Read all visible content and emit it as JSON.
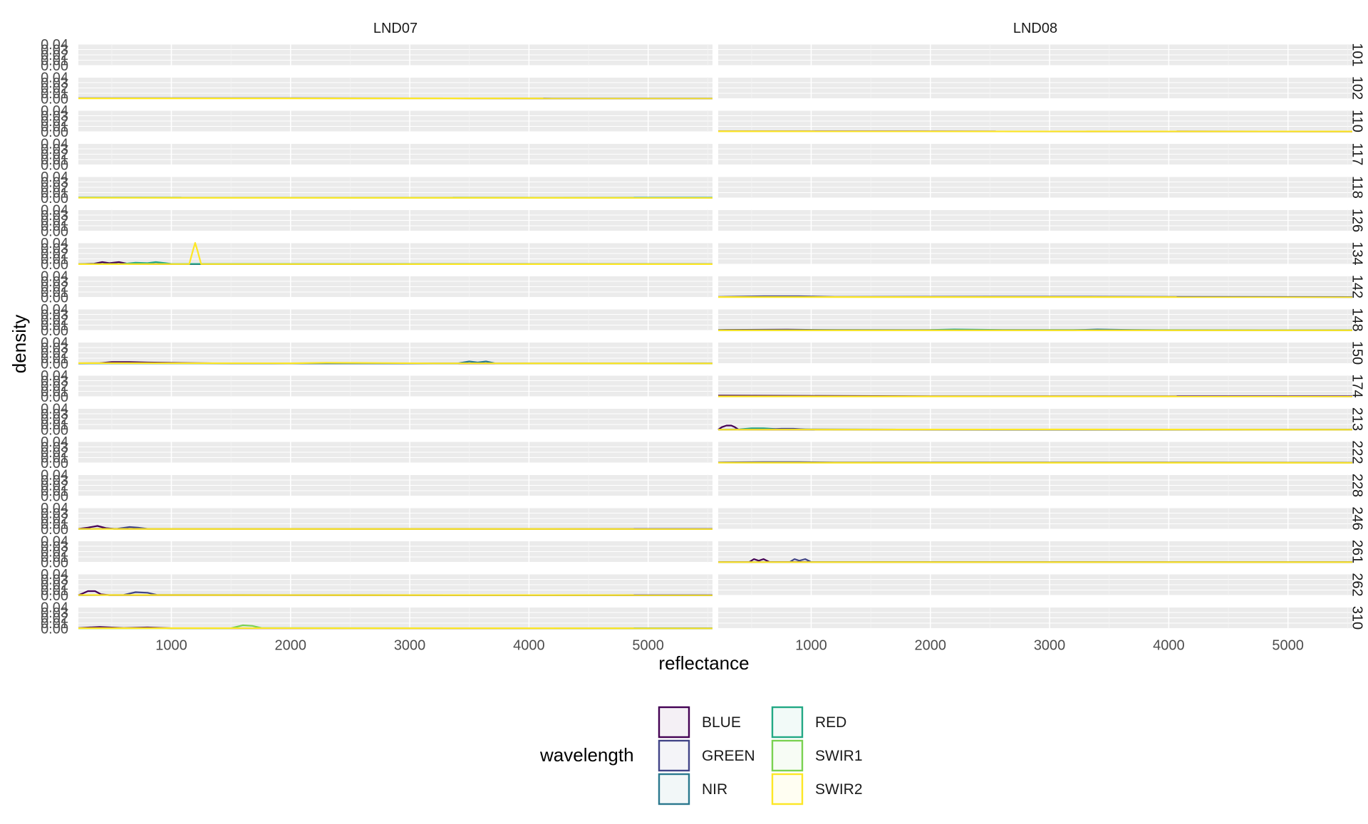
{
  "chart_data": {
    "type": "line",
    "subtype": "faceted density",
    "x_label": "reflectance",
    "y_label": "density",
    "column_facets": [
      "LND07",
      "LND08"
    ],
    "row_facets": [
      "101",
      "102",
      "110",
      "117",
      "118",
      "126",
      "134",
      "142",
      "148",
      "150",
      "174",
      "213",
      "222",
      "228",
      "246",
      "261",
      "262",
      "310"
    ],
    "x_ticks": [
      "1000",
      "2000",
      "3000",
      "4000",
      "5000"
    ],
    "x_tick_values": [
      1000,
      2000,
      3000,
      4000,
      5000
    ],
    "xlim": [
      220,
      5540
    ],
    "y_ticks": [
      "0.00",
      "0.01",
      "0.02",
      "0.03",
      "0.04"
    ],
    "y_tick_values": [
      0.0,
      0.01,
      0.02,
      0.03,
      0.04
    ],
    "ylim": [
      0,
      0.04
    ],
    "grid": true,
    "legend": {
      "title": "wavelength",
      "position": "bottom",
      "entries": [
        {
          "name": "BLUE",
          "color": "#440154"
        },
        {
          "name": "GREEN",
          "color": "#414487"
        },
        {
          "name": "NIR",
          "color": "#2a788e"
        },
        {
          "name": "RED",
          "color": "#22a884"
        },
        {
          "name": "SWIR1",
          "color": "#7ad151"
        },
        {
          "name": "SWIR2",
          "color": "#fde725"
        }
      ]
    },
    "series": [
      {
        "col": 0,
        "row": 1,
        "name": "GREEN",
        "points": [
          [
            220,
            0.001
          ],
          [
            2000,
            0.0008
          ],
          [
            3500,
            0.0006
          ],
          [
            4200,
            0.0003
          ],
          [
            5540,
            0.0002
          ]
        ]
      },
      {
        "col": 0,
        "row": 1,
        "name": "SWIR2",
        "points": [
          [
            220,
            0.0006
          ],
          [
            5540,
            0.0004
          ]
        ]
      },
      {
        "col": 0,
        "row": 4,
        "name": "RED",
        "points": [
          [
            220,
            0.0008
          ],
          [
            5540,
            0.0006
          ]
        ]
      },
      {
        "col": 0,
        "row": 4,
        "name": "SWIR2",
        "points": [
          [
            220,
            0.0004
          ],
          [
            5540,
            0.0003
          ]
        ]
      },
      {
        "col": 0,
        "row": 6,
        "name": "BLUE",
        "points": [
          [
            220,
            0.0003
          ],
          [
            350,
            0.001
          ],
          [
            420,
            0.004
          ],
          [
            480,
            0.002
          ],
          [
            560,
            0.004
          ],
          [
            640,
            0.0005
          ],
          [
            800,
            0.0002
          ],
          [
            5540,
            0.0001
          ]
        ]
      },
      {
        "col": 0,
        "row": 6,
        "name": "RED",
        "points": [
          [
            220,
            0.0002
          ],
          [
            600,
            0.0005
          ],
          [
            700,
            0.003
          ],
          [
            800,
            0.002
          ],
          [
            870,
            0.004
          ],
          [
            950,
            0.002
          ],
          [
            1000,
            0.0005
          ],
          [
            5540,
            0.0002
          ]
        ]
      },
      {
        "col": 0,
        "row": 6,
        "name": "SWIR2",
        "points": [
          [
            220,
            0.0002
          ],
          [
            1150,
            0.0003
          ],
          [
            1180,
            0.025
          ],
          [
            1200,
            0.04
          ],
          [
            1220,
            0.025
          ],
          [
            1250,
            0.0003
          ],
          [
            5540,
            0.0002
          ]
        ]
      },
      {
        "col": 0,
        "row": 9,
        "name": "BLUE",
        "points": [
          [
            220,
            0.0005
          ],
          [
            400,
            0.001
          ],
          [
            500,
            0.003
          ],
          [
            650,
            0.003
          ],
          [
            800,
            0.002
          ],
          [
            1200,
            0.001
          ],
          [
            1500,
            0.0003
          ],
          [
            5540,
            0.0002
          ]
        ]
      },
      {
        "col": 0,
        "row": 9,
        "name": "NIR",
        "points": [
          [
            220,
            0.0003
          ],
          [
            3400,
            0.0003
          ],
          [
            3500,
            0.004
          ],
          [
            3570,
            0.002
          ],
          [
            3640,
            0.004
          ],
          [
            3720,
            0.0003
          ],
          [
            5540,
            0.0002
          ]
        ]
      },
      {
        "col": 0,
        "row": 9,
        "name": "SWIR2",
        "points": [
          [
            220,
            0.0008
          ],
          [
            2000,
            0.0006
          ],
          [
            2300,
            0.0015
          ],
          [
            2800,
            0.001
          ],
          [
            3200,
            0.0004
          ],
          [
            5540,
            0.0003
          ]
        ]
      },
      {
        "col": 0,
        "row": 14,
        "name": "BLUE",
        "points": [
          [
            220,
            0.0005
          ],
          [
            300,
            0.003
          ],
          [
            380,
            0.006
          ],
          [
            450,
            0.002
          ],
          [
            520,
            0.0005
          ],
          [
            5540,
            0.0002
          ]
        ]
      },
      {
        "col": 0,
        "row": 14,
        "name": "GREEN",
        "points": [
          [
            220,
            0.0003
          ],
          [
            550,
            0.001
          ],
          [
            650,
            0.004
          ],
          [
            720,
            0.003
          ],
          [
            800,
            0.0005
          ],
          [
            5540,
            0.0002
          ]
        ]
      },
      {
        "col": 0,
        "row": 14,
        "name": "SWIR2",
        "points": [
          [
            220,
            0.0004
          ],
          [
            5540,
            0.0003
          ]
        ]
      },
      {
        "col": 0,
        "row": 16,
        "name": "BLUE",
        "points": [
          [
            220,
            0.0005
          ],
          [
            260,
            0.004
          ],
          [
            300,
            0.008
          ],
          [
            360,
            0.008
          ],
          [
            410,
            0.002
          ],
          [
            480,
            0.0005
          ],
          [
            5540,
            0.0002
          ]
        ]
      },
      {
        "col": 0,
        "row": 16,
        "name": "GREEN",
        "points": [
          [
            220,
            0.0003
          ],
          [
            600,
            0.001
          ],
          [
            700,
            0.006
          ],
          [
            800,
            0.005
          ],
          [
            880,
            0.001
          ],
          [
            5540,
            0.0002
          ]
        ]
      },
      {
        "col": 0,
        "row": 16,
        "name": "SWIR2",
        "points": [
          [
            220,
            0.0006
          ],
          [
            5540,
            0.0004
          ]
        ]
      },
      {
        "col": 0,
        "row": 17,
        "name": "BLUE",
        "points": [
          [
            220,
            0.001
          ],
          [
            400,
            0.003
          ],
          [
            600,
            0.001
          ],
          [
            800,
            0.002
          ],
          [
            1000,
            0.0005
          ],
          [
            5540,
            0.0002
          ]
        ]
      },
      {
        "col": 0,
        "row": 17,
        "name": "SWIR1",
        "points": [
          [
            220,
            0.0003
          ],
          [
            1500,
            0.0005
          ],
          [
            1600,
            0.006
          ],
          [
            1680,
            0.005
          ],
          [
            1760,
            0.0008
          ],
          [
            5540,
            0.0003
          ]
        ]
      },
      {
        "col": 0,
        "row": 17,
        "name": "SWIR2",
        "points": [
          [
            220,
            0.0006
          ],
          [
            5540,
            0.0004
          ]
        ]
      },
      {
        "col": 1,
        "row": 2,
        "name": "BLUE",
        "points": [
          [
            220,
            0.001
          ],
          [
            5540,
            0.0006
          ]
        ]
      },
      {
        "col": 1,
        "row": 2,
        "name": "SWIR2",
        "points": [
          [
            220,
            0.0008
          ],
          [
            5540,
            0.0005
          ]
        ]
      },
      {
        "col": 1,
        "row": 7,
        "name": "GREEN",
        "points": [
          [
            220,
            0.001
          ],
          [
            600,
            0.002
          ],
          [
            900,
            0.002
          ],
          [
            1200,
            0.001
          ],
          [
            3000,
            0.0012
          ],
          [
            5540,
            0.0006
          ]
        ]
      },
      {
        "col": 1,
        "row": 7,
        "name": "SWIR2",
        "points": [
          [
            220,
            0.0005
          ],
          [
            5540,
            0.0004
          ]
        ]
      },
      {
        "col": 1,
        "row": 8,
        "name": "BLUE",
        "points": [
          [
            220,
            0.001
          ],
          [
            800,
            0.0015
          ],
          [
            1200,
            0.0008
          ],
          [
            5540,
            0.0004
          ]
        ]
      },
      {
        "col": 1,
        "row": 8,
        "name": "RED",
        "points": [
          [
            220,
            0.0006
          ],
          [
            2000,
            0.0008
          ],
          [
            2200,
            0.0018
          ],
          [
            2600,
            0.001
          ],
          [
            5540,
            0.0004
          ]
        ]
      },
      {
        "col": 1,
        "row": 8,
        "name": "NIR",
        "points": [
          [
            220,
            0.0004
          ],
          [
            3200,
            0.0006
          ],
          [
            3400,
            0.0018
          ],
          [
            3700,
            0.001
          ],
          [
            4000,
            0.0004
          ],
          [
            5540,
            0.0003
          ]
        ]
      },
      {
        "col": 1,
        "row": 8,
        "name": "SWIR2",
        "points": [
          [
            220,
            0.0003
          ],
          [
            5540,
            0.0003
          ]
        ]
      },
      {
        "col": 1,
        "row": 10,
        "name": "BLUE",
        "points": [
          [
            220,
            0.002
          ],
          [
            1000,
            0.0015
          ],
          [
            2000,
            0.001
          ],
          [
            5540,
            0.0006
          ]
        ]
      },
      {
        "col": 1,
        "row": 10,
        "name": "SWIR2",
        "points": [
          [
            220,
            0.0005
          ],
          [
            5540,
            0.0004
          ]
        ]
      },
      {
        "col": 1,
        "row": 11,
        "name": "BLUE",
        "points": [
          [
            220,
            0.0003
          ],
          [
            250,
            0.005
          ],
          [
            290,
            0.008
          ],
          [
            330,
            0.008
          ],
          [
            360,
            0.005
          ],
          [
            390,
            0.0005
          ],
          [
            600,
            0.0003
          ],
          [
            5540,
            0.0002
          ]
        ]
      },
      {
        "col": 1,
        "row": 11,
        "name": "RED",
        "points": [
          [
            220,
            0.0002
          ],
          [
            400,
            0.001
          ],
          [
            500,
            0.003
          ],
          [
            600,
            0.003
          ],
          [
            700,
            0.0015
          ],
          [
            1000,
            0.0006
          ],
          [
            5540,
            0.0003
          ]
        ]
      },
      {
        "col": 1,
        "row": 11,
        "name": "GREEN",
        "points": [
          [
            220,
            0.0002
          ],
          [
            650,
            0.0008
          ],
          [
            750,
            0.002
          ],
          [
            850,
            0.002
          ],
          [
            950,
            0.0006
          ],
          [
            5540,
            0.0003
          ]
        ]
      },
      {
        "col": 1,
        "row": 11,
        "name": "SWIR2",
        "points": [
          [
            220,
            0.0003
          ],
          [
            3000,
            0.0006
          ],
          [
            5540,
            0.0003
          ]
        ]
      },
      {
        "col": 1,
        "row": 12,
        "name": "GREEN",
        "points": [
          [
            220,
            0.001
          ],
          [
            600,
            0.0015
          ],
          [
            900,
            0.0015
          ],
          [
            1200,
            0.001
          ],
          [
            3500,
            0.001
          ],
          [
            5540,
            0.0005
          ]
        ]
      },
      {
        "col": 1,
        "row": 12,
        "name": "SWIR2",
        "points": [
          [
            220,
            0.0004
          ],
          [
            5540,
            0.0003
          ]
        ]
      },
      {
        "col": 1,
        "row": 15,
        "name": "BLUE",
        "points": [
          [
            220,
            0.0003
          ],
          [
            480,
            0.0004
          ],
          [
            520,
            0.006
          ],
          [
            560,
            0.003
          ],
          [
            600,
            0.006
          ],
          [
            650,
            0.0005
          ],
          [
            5540,
            0.0002
          ]
        ]
      },
      {
        "col": 1,
        "row": 15,
        "name": "GREEN",
        "points": [
          [
            220,
            0.0002
          ],
          [
            820,
            0.0004
          ],
          [
            860,
            0.006
          ],
          [
            900,
            0.003
          ],
          [
            950,
            0.006
          ],
          [
            1000,
            0.0005
          ],
          [
            5540,
            0.0002
          ]
        ]
      },
      {
        "col": 1,
        "row": 15,
        "name": "SWIR2",
        "points": [
          [
            220,
            0.0003
          ],
          [
            5540,
            0.0003
          ]
        ]
      }
    ]
  }
}
